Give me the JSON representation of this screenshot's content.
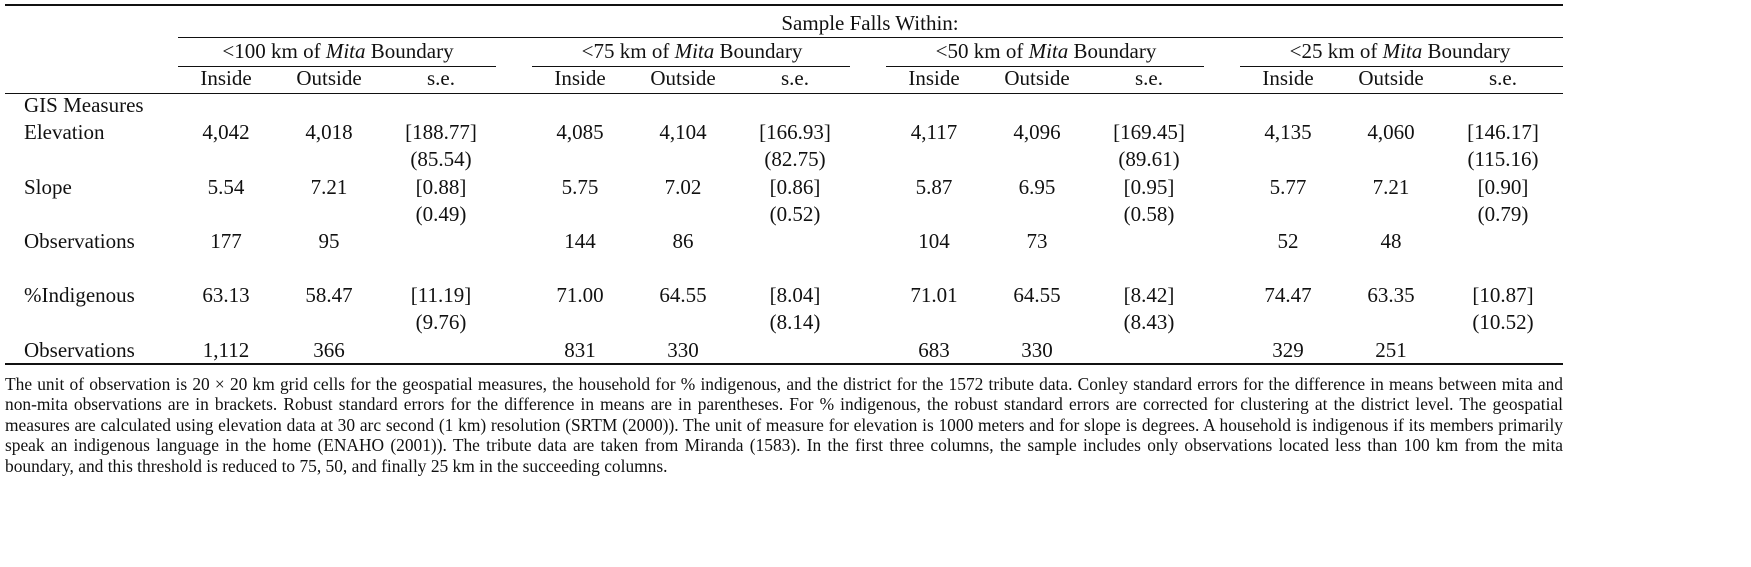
{
  "header": {
    "title": "Sample Falls Within:"
  },
  "groups": [
    {
      "prefix": "<100 km of",
      "italic": "Mita",
      "suffix": "Boundary",
      "columns": [
        "Inside",
        "Outside",
        "s.e."
      ]
    },
    {
      "prefix": "<75 km of",
      "italic": "Mita",
      "suffix": "Boundary",
      "columns": [
        "Inside",
        "Outside",
        "s.e."
      ]
    },
    {
      "prefix": "<50 km of",
      "italic": "Mita",
      "suffix": "Boundary",
      "columns": [
        "Inside",
        "Outside",
        "s.e."
      ]
    },
    {
      "prefix": "<25 km of",
      "italic": "Mita",
      "suffix": "Boundary",
      "columns": [
        "Inside",
        "Outside",
        "s.e."
      ]
    }
  ],
  "table": {
    "rows": [
      [
        "GIS Measures",
        null,
        null,
        null,
        null,
        null,
        null,
        null,
        null,
        null,
        null,
        null,
        null
      ],
      [
        "Elevation",
        "4,042",
        "4,018",
        "[188.77]",
        "4,085",
        "4,104",
        "[166.93]",
        "4,117",
        "4,096",
        "[169.45]",
        "4,135",
        "4,060",
        "[146.17]"
      ],
      [
        null,
        null,
        null,
        "(85.54)",
        null,
        null,
        "(82.75)",
        null,
        null,
        "(89.61)",
        null,
        null,
        "(115.16)"
      ],
      [
        "Slope",
        "5.54",
        "7.21",
        "[0.88]",
        "5.75",
        "7.02",
        "[0.86]",
        "5.87",
        "6.95",
        "[0.95]",
        "5.77",
        "7.21",
        "[0.90]"
      ],
      [
        null,
        null,
        null,
        "(0.49)",
        null,
        null,
        "(0.52)",
        null,
        null,
        "(0.58)",
        null,
        null,
        "(0.79)"
      ],
      [
        "Observations",
        "177",
        "95",
        null,
        "144",
        "86",
        null,
        "104",
        "73",
        null,
        "52",
        "48",
        null
      ],
      [
        "%Indigenous",
        "63.13",
        "58.47",
        "[11.19]",
        "71.00",
        "64.55",
        "[8.04]",
        "71.01",
        "64.55",
        "[8.42]",
        "74.47",
        "63.35",
        "[10.87]"
      ],
      [
        null,
        null,
        null,
        "(9.76)",
        null,
        null,
        "(8.14)",
        null,
        null,
        "(8.43)",
        null,
        null,
        "(10.52)"
      ],
      [
        "Observations",
        "1,112",
        "366",
        null,
        "831",
        "330",
        null,
        "683",
        "330",
        null,
        "329",
        "251",
        null
      ]
    ]
  },
  "footnote": "The unit of observation is 20 × 20 km grid cells for the geospatial measures, the household for % indigenous, and the district for the 1572 tribute data. Conley standard errors for the difference in means between mita and non-mita observations are in brackets. Robust standard errors for the difference in means are in parentheses. For % indigenous, the robust standard errors are corrected for clustering at the district level. The geospatial measures are calculated using elevation data at 30 arc second (1 km) resolution (SRTM (2000)). The unit of measure for elevation is 1000 meters and for slope is degrees. A household is indigenous if its members primarily speak an indigenous language in the home (ENAHO (2001)). The tribute data are taken from Miranda (1583). In the first three columns, the sample includes only observations located less than 100 km from the mita boundary, and this threshold is reduced to 75, 50, and finally 25 km in the succeeding columns."
}
